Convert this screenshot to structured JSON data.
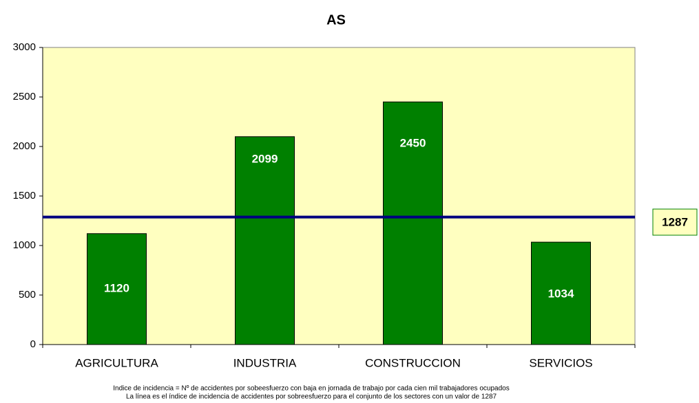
{
  "chart_data": {
    "type": "bar",
    "title": "AS",
    "categories": [
      "AGRICULTURA",
      "INDUSTRIA",
      "CONSTRUCCION",
      "SERVICIOS"
    ],
    "values": [
      1120,
      2099,
      2450,
      1034
    ],
    "color": "#008000",
    "ylim": [
      0,
      3000
    ],
    "yticks": [
      0,
      500,
      1000,
      1500,
      2000,
      2500,
      3000
    ],
    "reference_line": {
      "value": 1287,
      "color": "#000080"
    },
    "notes": [
      "Indice de incidencia = Nº de accidentes por sobeesfuerzo con baja en jornada de trabajo por cada  cien mil trabajadores ocupados",
      "La línea es el índice de incidencia de accidentes por sobreesfuerzo para el conjunto de los sectores con un valor de 1287"
    ]
  }
}
